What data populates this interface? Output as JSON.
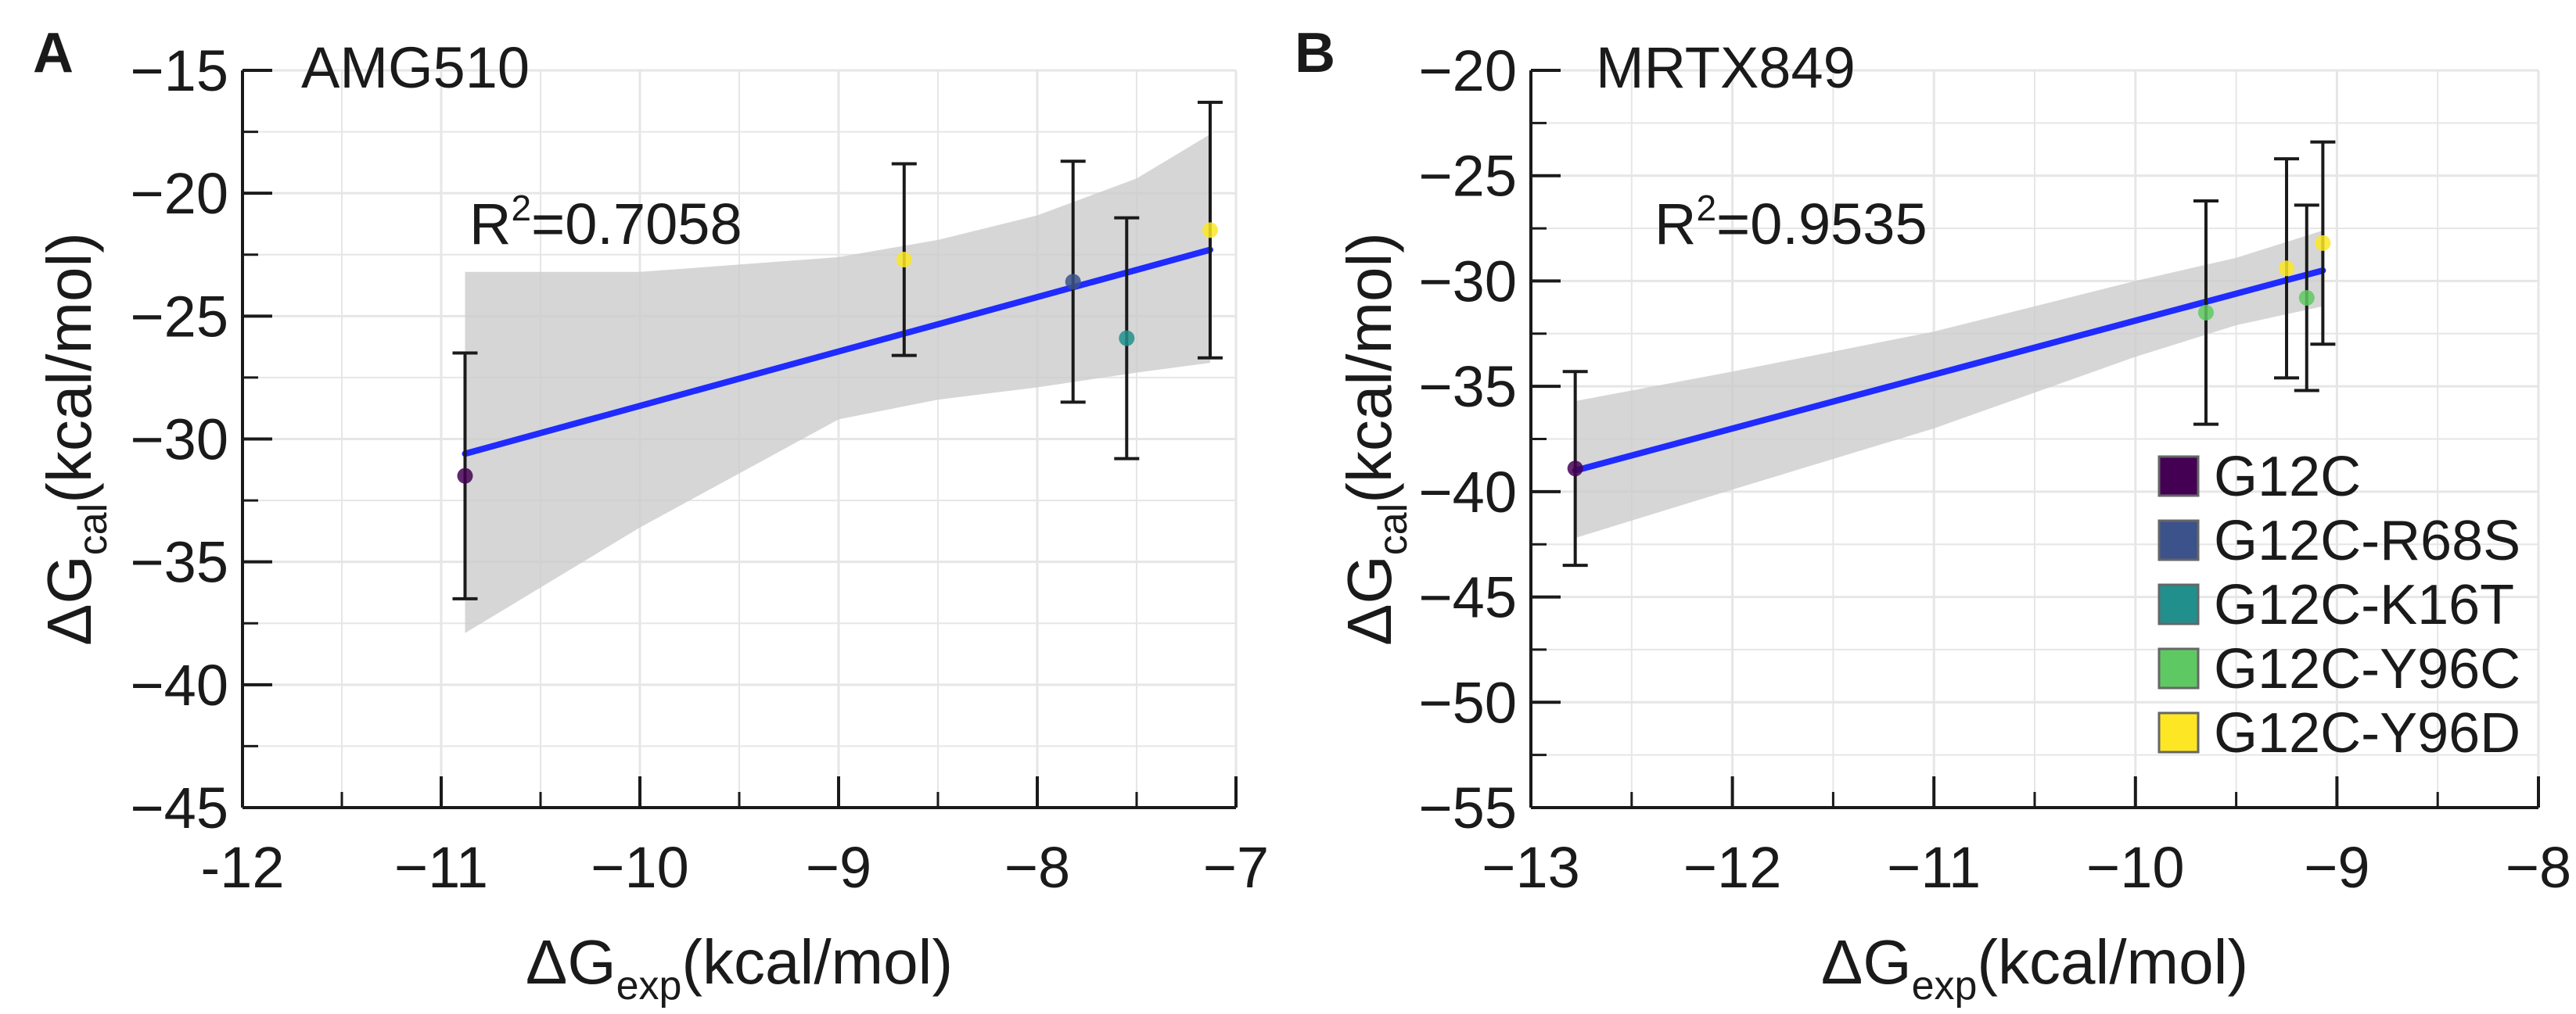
{
  "chart_data": [
    {
      "type": "scatter",
      "panel_label": "A",
      "title": "AMG510",
      "xlabel": {
        "prefix": "ΔG",
        "sub": "exp",
        "suffix": "(kcal/mol)"
      },
      "ylabel": {
        "prefix": "ΔG",
        "sub": "cal",
        "suffix": "(kcal/mol)"
      },
      "xlim": [
        -12,
        -7
      ],
      "ylim": [
        -45,
        -15
      ],
      "xticks": [
        -12,
        -11,
        -10,
        -9,
        -8,
        -7
      ],
      "xtick_labels": [
        "-12",
        "−11",
        "−10",
        "−9",
        "−8",
        "−7"
      ],
      "yticks": [
        -45,
        -40,
        -35,
        -30,
        -25,
        -20,
        -15
      ],
      "ytick_labels": [
        "−45",
        "−40",
        "−35",
        "−30",
        "−25",
        "−20",
        "−15"
      ],
      "grid": true,
      "r2": {
        "base": "R",
        "sup": "2",
        "rest": "=0.7058"
      },
      "fit": {
        "x": [
          -10.88,
          -7.13
        ],
        "y": [
          -30.6,
          -22.3
        ]
      },
      "ci_band": {
        "x": [
          -10.88,
          -10.0,
          -9.0,
          -8.5,
          -8.0,
          -7.5,
          -7.13
        ],
        "upper": [
          -23.2,
          -23.2,
          -22.6,
          -21.9,
          -20.9,
          -19.4,
          -17.6
        ],
        "lower": [
          -37.9,
          -33.6,
          -29.2,
          -28.4,
          -27.9,
          -27.3,
          -26.9
        ]
      },
      "points": [
        {
          "series": "G12C",
          "x": -10.88,
          "y": -31.5,
          "err": 5.0
        },
        {
          "series": "G12C-Y96D",
          "x": -8.67,
          "y": -22.7,
          "err": 3.9
        },
        {
          "series": "G12C-R68S",
          "x": -7.82,
          "y": -23.6,
          "err": 4.9
        },
        {
          "series": "G12C-K16T",
          "x": -7.55,
          "y": -25.9,
          "err": 4.9
        },
        {
          "series": "G12C-Y96D",
          "x": -7.13,
          "y": -21.5,
          "err": 5.2
        }
      ]
    },
    {
      "type": "scatter",
      "panel_label": "B",
      "title": "MRTX849",
      "xlabel": {
        "prefix": "ΔG",
        "sub": "exp",
        "suffix": "(kcal/mol)"
      },
      "ylabel": {
        "prefix": "ΔG",
        "sub": "cal",
        "suffix": "(kcal/mol)"
      },
      "xlim": [
        -13,
        -8
      ],
      "ylim": [
        -55,
        -20
      ],
      "xticks": [
        -13,
        -12,
        -11,
        -10,
        -9,
        -8
      ],
      "xtick_labels": [
        "−13",
        "−12",
        "−11",
        "−10",
        "−9",
        "−8"
      ],
      "yticks": [
        -55,
        -50,
        -45,
        -40,
        -35,
        -30,
        -25,
        -20
      ],
      "ytick_labels": [
        "−55",
        "−50",
        "−45",
        "−40",
        "−35",
        "−30",
        "−25",
        "−20"
      ],
      "grid": true,
      "r2": {
        "base": "R",
        "sup": "2",
        "rest": "=0.9535"
      },
      "fit": {
        "x": [
          -12.78,
          -9.07
        ],
        "y": [
          -39.0,
          -29.5
        ]
      },
      "ci_band": {
        "x": [
          -12.78,
          -12.0,
          -11.0,
          -10.0,
          -9.5,
          -9.07
        ],
        "upper": [
          -35.7,
          -34.3,
          -32.4,
          -30.0,
          -28.9,
          -27.6
        ],
        "lower": [
          -42.2,
          -39.9,
          -37.0,
          -33.6,
          -32.1,
          -31.2
        ]
      },
      "points": [
        {
          "series": "G12C",
          "x": -12.78,
          "y": -38.9,
          "err": 4.6
        },
        {
          "series": "G12C-Y96C",
          "x": -9.65,
          "y": -31.5,
          "err": 5.3
        },
        {
          "series": "G12C-Y96D",
          "x": -9.25,
          "y": -29.4,
          "err": 5.2
        },
        {
          "series": "G12C-Y96C",
          "x": -9.15,
          "y": -30.8,
          "err": 4.4
        },
        {
          "series": "G12C-Y96D",
          "x": -9.07,
          "y": -28.2,
          "err": 4.8
        }
      ]
    }
  ],
  "legend": {
    "placement": "bottom-right of panel B",
    "entries": [
      {
        "name": "G12C",
        "color": "#440154"
      },
      {
        "name": "G12C-R68S",
        "color": "#3b528b"
      },
      {
        "name": "G12C-K16T",
        "color": "#21908c"
      },
      {
        "name": "G12C-Y96C",
        "color": "#5ec962"
      },
      {
        "name": "G12C-Y96D",
        "color": "#fde725"
      }
    ]
  },
  "colors": {
    "fit_line": "#1f2bff",
    "ci_band": "#cccccc",
    "grid": "#e6e6e6",
    "axis": "#1a1a1a",
    "error_bar": "#1a1a1a"
  }
}
